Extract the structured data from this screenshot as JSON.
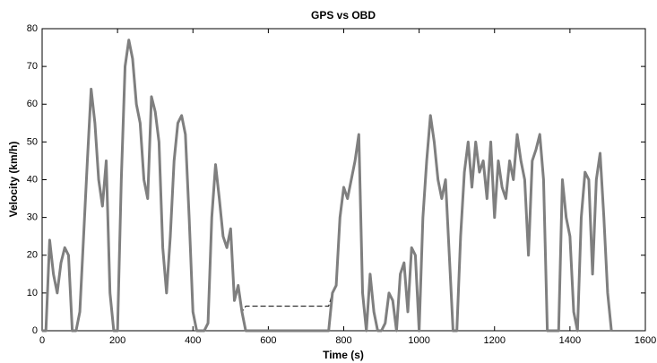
{
  "chart_data": {
    "type": "line",
    "title": "GPS vs OBD",
    "xlabel": "Time (s)",
    "ylabel": "Velocity (km/h)",
    "x": [
      0,
      10,
      20,
      30,
      40,
      50,
      60,
      70,
      80,
      90,
      100,
      110,
      120,
      130,
      140,
      150,
      160,
      170,
      180,
      190,
      200,
      210,
      220,
      230,
      240,
      250,
      260,
      270,
      280,
      290,
      300,
      310,
      320,
      330,
      340,
      350,
      360,
      370,
      380,
      390,
      400,
      410,
      420,
      430,
      440,
      450,
      460,
      470,
      480,
      490,
      500,
      510,
      520,
      530,
      540,
      550,
      560,
      570,
      580,
      590,
      600,
      610,
      620,
      630,
      640,
      650,
      660,
      670,
      680,
      690,
      700,
      710,
      720,
      730,
      740,
      750,
      760,
      770,
      780,
      790,
      800,
      810,
      820,
      830,
      840,
      850,
      860,
      870,
      880,
      890,
      900,
      910,
      920,
      930,
      940,
      950,
      960,
      970,
      980,
      990,
      1000,
      1010,
      1020,
      1030,
      1040,
      1050,
      1060,
      1070,
      1080,
      1090,
      1100,
      1110,
      1120,
      1130,
      1140,
      1150,
      1160,
      1170,
      1180,
      1190,
      1200,
      1210,
      1220,
      1230,
      1240,
      1250,
      1260,
      1270,
      1280,
      1290,
      1300,
      1310,
      1320,
      1330,
      1340,
      1350,
      1360,
      1370,
      1380,
      1390,
      1400,
      1410,
      1420,
      1430,
      1440,
      1450,
      1460,
      1470,
      1480,
      1490,
      1500,
      1510
    ],
    "series": [
      {
        "color": "#000000",
        "dashed": true,
        "values": [
          0,
          0,
          24,
          15,
          10,
          18,
          22,
          20,
          0,
          0,
          5,
          25,
          45,
          64,
          55,
          40,
          33,
          45,
          10,
          0,
          0,
          40,
          70,
          77,
          72,
          60,
          55,
          40,
          35,
          62,
          58,
          50,
          22,
          10,
          25,
          45,
          55,
          57,
          52,
          30,
          5,
          0,
          0,
          0,
          2,
          30,
          44,
          35,
          25,
          22,
          27,
          8,
          12,
          5,
          6.5,
          6.5,
          6.5,
          6.5,
          6.5,
          6.5,
          6.5,
          6.5,
          6.5,
          6.5,
          6.5,
          6.5,
          6.5,
          6.5,
          6.5,
          6.5,
          6.5,
          6.5,
          6.5,
          6.5,
          6.5,
          6.5,
          6.5,
          10,
          12,
          30,
          38,
          35,
          40,
          45,
          52,
          10,
          0,
          15,
          5,
          0,
          0,
          2,
          10,
          8,
          0,
          15,
          18,
          5,
          22,
          20,
          0,
          30,
          45,
          57,
          50,
          40,
          35,
          40,
          20,
          0,
          0,
          25,
          42,
          50,
          38,
          50,
          42,
          45,
          35,
          50,
          30,
          45,
          38,
          35,
          45,
          40,
          52,
          45,
          40,
          20,
          45,
          48,
          52,
          40,
          0,
          0,
          0,
          0,
          40,
          30,
          25,
          5,
          0,
          30,
          42,
          40,
          15,
          40,
          47,
          30,
          10,
          0
        ]
      },
      {
        "color": "#7f7f7f",
        "dashed": false,
        "values": [
          0,
          0,
          24,
          15,
          10,
          18,
          22,
          20,
          0,
          0,
          5,
          25,
          45,
          64,
          55,
          40,
          33,
          45,
          10,
          0,
          0,
          40,
          70,
          77,
          72,
          60,
          55,
          40,
          35,
          62,
          58,
          50,
          22,
          10,
          25,
          45,
          55,
          57,
          52,
          30,
          5,
          0,
          0,
          0,
          2,
          30,
          44,
          35,
          25,
          22,
          27,
          8,
          12,
          5,
          0,
          0,
          0,
          0,
          0,
          0,
          0,
          0,
          0,
          0,
          0,
          0,
          0,
          0,
          0,
          0,
          0,
          0,
          0,
          0,
          0,
          0,
          0,
          10,
          12,
          30,
          38,
          35,
          40,
          45,
          52,
          10,
          0,
          15,
          5,
          0,
          0,
          2,
          10,
          8,
          0,
          15,
          18,
          5,
          22,
          20,
          0,
          30,
          45,
          57,
          50,
          40,
          35,
          40,
          20,
          0,
          0,
          25,
          42,
          50,
          38,
          50,
          42,
          45,
          35,
          50,
          30,
          45,
          38,
          35,
          45,
          40,
          52,
          45,
          40,
          20,
          45,
          48,
          52,
          40,
          0,
          0,
          0,
          0,
          40,
          30,
          25,
          5,
          0,
          30,
          42,
          40,
          15,
          40,
          47,
          30,
          10,
          0
        ]
      }
    ],
    "xlim": [
      0,
      1600
    ],
    "xticks": [
      0,
      200,
      400,
      600,
      800,
      1000,
      1200,
      1400,
      1600
    ],
    "ylim": [
      0,
      80
    ],
    "yticks": [
      0,
      10,
      20,
      30,
      40,
      50,
      60,
      70,
      80
    ],
    "grid": false
  }
}
